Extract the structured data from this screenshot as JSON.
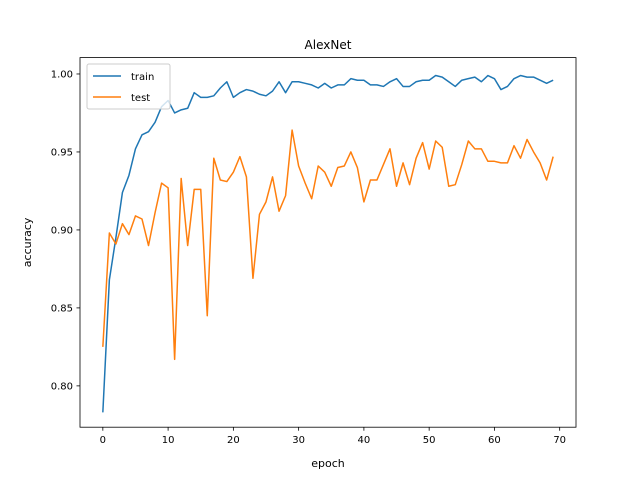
{
  "chart_data": {
    "type": "line",
    "title": "AlexNet",
    "xlabel": "epoch",
    "ylabel": "accuracy",
    "xlim": [
      -3.5,
      72.5
    ],
    "ylim": [
      0.7735,
      1.0105
    ],
    "xticks": [
      0,
      10,
      20,
      30,
      40,
      50,
      60,
      70
    ],
    "yticks": [
      0.8,
      0.85,
      0.9,
      0.95,
      1.0
    ],
    "ytick_labels": [
      "0.80",
      "0.85",
      "0.90",
      "0.95",
      "1.00"
    ],
    "grid": false,
    "legend_position": "top-left",
    "series": [
      {
        "name": "train",
        "color": "#1f77b4",
        "x": [
          0,
          1,
          2,
          3,
          4,
          5,
          6,
          7,
          8,
          9,
          10,
          11,
          12,
          13,
          14,
          15,
          16,
          17,
          18,
          19,
          20,
          21,
          22,
          23,
          24,
          25,
          26,
          27,
          28,
          29,
          30,
          31,
          32,
          33,
          34,
          35,
          36,
          37,
          38,
          39,
          40,
          41,
          42,
          43,
          44,
          45,
          46,
          47,
          48,
          49,
          50,
          51,
          52,
          53,
          54,
          55,
          56,
          57,
          58,
          59,
          60,
          61,
          62,
          63,
          64,
          65,
          66,
          67,
          68,
          69
        ],
        "values": [
          0.783,
          0.868,
          0.895,
          0.924,
          0.935,
          0.952,
          0.961,
          0.963,
          0.969,
          0.979,
          0.983,
          0.975,
          0.977,
          0.978,
          0.988,
          0.985,
          0.985,
          0.986,
          0.991,
          0.995,
          0.985,
          0.988,
          0.99,
          0.989,
          0.987,
          0.986,
          0.989,
          0.995,
          0.988,
          0.995,
          0.995,
          0.994,
          0.993,
          0.991,
          0.994,
          0.991,
          0.993,
          0.993,
          0.997,
          0.996,
          0.996,
          0.993,
          0.993,
          0.992,
          0.995,
          0.997,
          0.992,
          0.992,
          0.995,
          0.996,
          0.996,
          0.999,
          0.998,
          0.995,
          0.992,
          0.996,
          0.997,
          0.998,
          0.995,
          0.999,
          0.997,
          0.99,
          0.992,
          0.997,
          0.999,
          0.998,
          0.998,
          0.996,
          0.994,
          0.996
        ]
      },
      {
        "name": "test",
        "color": "#ff7f0e",
        "x": [
          0,
          1,
          2,
          3,
          4,
          5,
          6,
          7,
          8,
          9,
          10,
          11,
          12,
          13,
          14,
          15,
          16,
          17,
          18,
          19,
          20,
          21,
          22,
          23,
          24,
          25,
          26,
          27,
          28,
          29,
          30,
          31,
          32,
          33,
          34,
          35,
          36,
          37,
          38,
          39,
          40,
          41,
          42,
          43,
          44,
          45,
          46,
          47,
          48,
          49,
          50,
          51,
          52,
          53,
          54,
          55,
          56,
          57,
          58,
          59,
          60,
          61,
          62,
          63,
          64,
          65,
          66,
          67,
          68,
          69
        ],
        "values": [
          0.825,
          0.898,
          0.891,
          0.904,
          0.897,
          0.909,
          0.907,
          0.89,
          0.911,
          0.93,
          0.927,
          0.817,
          0.933,
          0.89,
          0.926,
          0.926,
          0.845,
          0.946,
          0.932,
          0.931,
          0.937,
          0.947,
          0.934,
          0.869,
          0.91,
          0.918,
          0.934,
          0.912,
          0.922,
          0.964,
          0.941,
          0.93,
          0.92,
          0.941,
          0.937,
          0.928,
          0.94,
          0.941,
          0.95,
          0.94,
          0.918,
          0.932,
          0.932,
          0.942,
          0.952,
          0.928,
          0.943,
          0.929,
          0.946,
          0.956,
          0.939,
          0.957,
          0.953,
          0.928,
          0.929,
          0.942,
          0.957,
          0.952,
          0.952,
          0.944,
          0.944,
          0.943,
          0.943,
          0.954,
          0.946,
          0.958,
          0.95,
          0.943,
          0.932,
          0.947
        ]
      }
    ]
  }
}
